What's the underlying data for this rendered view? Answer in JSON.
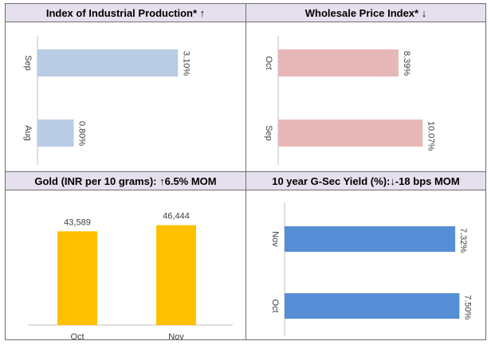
{
  "panels": [
    {
      "title": "Index of Industrial Production* ↑",
      "chart_data": {
        "type": "bar",
        "orientation": "horizontal",
        "categories": [
          "Sep",
          "Aug"
        ],
        "values": [
          3.1,
          0.8
        ],
        "value_labels": [
          "3.10%",
          "0.80%"
        ],
        "color": "#b8cce4",
        "xlim": [
          0,
          3.5
        ]
      }
    },
    {
      "title": "Wholesale Price Index* ↓",
      "chart_data": {
        "type": "bar",
        "orientation": "horizontal",
        "categories": [
          "Oct",
          "Sep"
        ],
        "values": [
          8.39,
          10.07
        ],
        "value_labels": [
          "8.39%",
          "10.07%"
        ],
        "color": "#e6b9b8",
        "xlim": [
          0,
          11.5
        ]
      }
    },
    {
      "title": "Gold (INR per 10 grams): ↑6.5% MOM",
      "chart_data": {
        "type": "bar",
        "orientation": "vertical",
        "categories": [
          "Oct",
          "Nov"
        ],
        "values": [
          43589,
          46444
        ],
        "value_labels": [
          "43,589",
          "46,444"
        ],
        "color": "#ffc000",
        "ylim": [
          0,
          50000
        ]
      }
    },
    {
      "title": "10 year G-Sec Yield (%):↓-18 bps MOM",
      "chart_data": {
        "type": "bar",
        "orientation": "horizontal",
        "categories": [
          "Nov",
          "Oct"
        ],
        "values": [
          7.32,
          7.5
        ],
        "value_labels": [
          "7.32%",
          "7.50%"
        ],
        "color": "#558ed5",
        "xlim": [
          0,
          8.0
        ]
      }
    }
  ]
}
